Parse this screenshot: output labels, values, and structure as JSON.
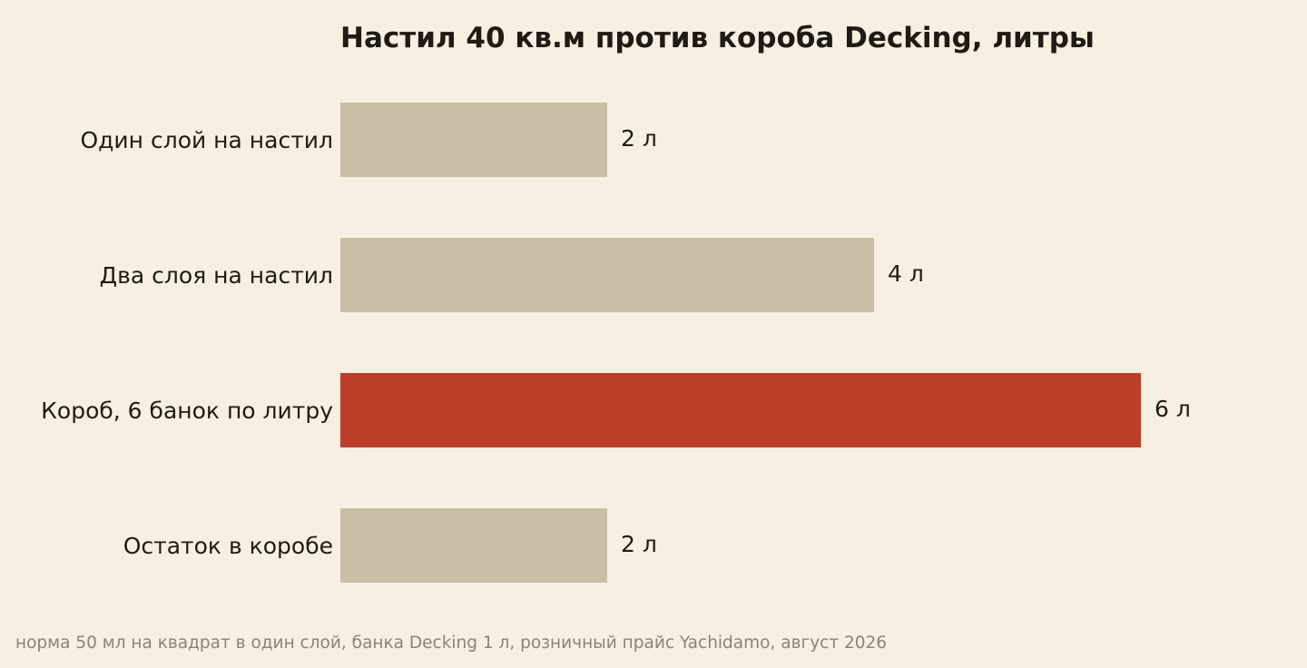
{
  "chart_data": {
    "type": "bar",
    "orientation": "horizontal",
    "title": "Настил 40 кв.м против короба Decking, литры",
    "xlabel": "",
    "ylabel": "",
    "categories": [
      "Один слой на настил",
      "Два слоя на настил",
      "Короб, 6 банок по литру",
      "Остаток в коробе"
    ],
    "values": [
      2,
      4,
      6,
      2
    ],
    "value_labels": [
      "2 л",
      "4 л",
      "6 л",
      "2 л"
    ],
    "highlight_index": 2,
    "xlim": [
      0,
      6
    ],
    "grid": false,
    "axes_visible": false,
    "legend": "none"
  },
  "colors": {
    "background": "#f6efe2",
    "bar": "#c9bfa6",
    "highlight": "#bc3d28",
    "text": "#1f1b14",
    "footnote": "#8a8479"
  },
  "footnote": "норма 50 мл на квадрат в один слой, банка Decking 1 л, розничный прайс Yachidamo, август 2026"
}
